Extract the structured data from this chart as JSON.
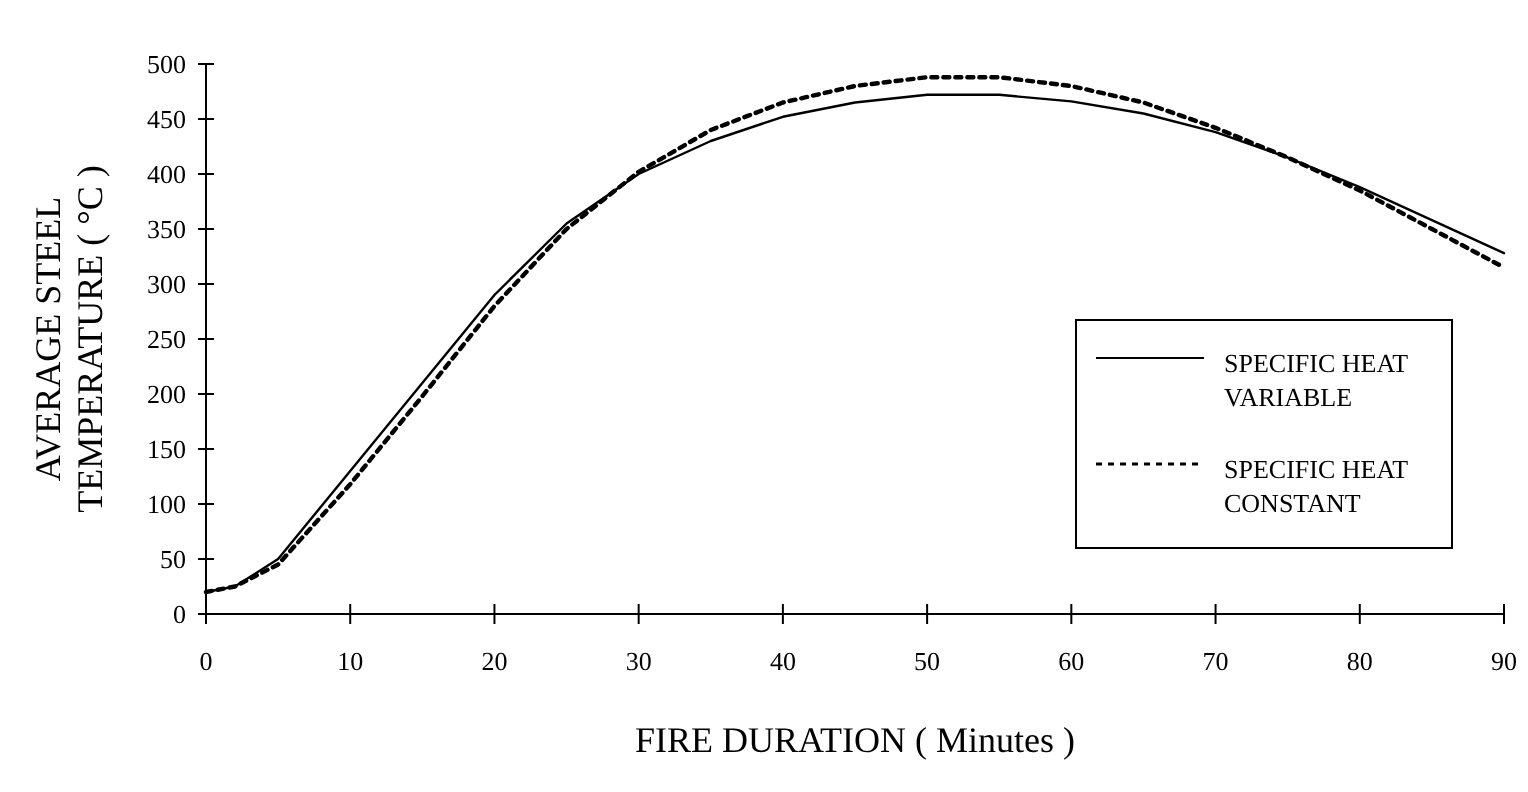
{
  "chart_data": {
    "type": "line",
    "xlabel": "FIRE DURATION ( Minutes )",
    "ylabel": "AVERAGE STEEL\nTEMPERATURE ( °C )",
    "xlim": [
      0,
      90
    ],
    "ylim": [
      0,
      500
    ],
    "xticks": [
      0,
      10,
      20,
      30,
      40,
      50,
      60,
      70,
      80,
      90
    ],
    "yticks": [
      0,
      50,
      100,
      150,
      200,
      250,
      300,
      350,
      400,
      450,
      500
    ],
    "legend": "right",
    "x": [
      0,
      2,
      5,
      10,
      15,
      20,
      25,
      30,
      35,
      40,
      45,
      50,
      55,
      60,
      65,
      70,
      75,
      80,
      85,
      90
    ],
    "series": [
      {
        "name": "SPECIFIC HEAT\nVARIABLE",
        "color": "#000000",
        "line_style": "solid",
        "values": [
          20,
          25,
          50,
          130,
          210,
          290,
          355,
          400,
          430,
          452,
          465,
          472,
          472,
          466,
          455,
          438,
          415,
          388,
          358,
          328
        ]
      },
      {
        "name": "SPECIFIC HEAT\nCONSTANT",
        "color": "#000000",
        "line_style": "dotted",
        "values": [
          20,
          25,
          45,
          118,
          198,
          280,
          350,
          402,
          440,
          465,
          480,
          488,
          488,
          480,
          465,
          442,
          415,
          385,
          350,
          315
        ]
      }
    ]
  }
}
